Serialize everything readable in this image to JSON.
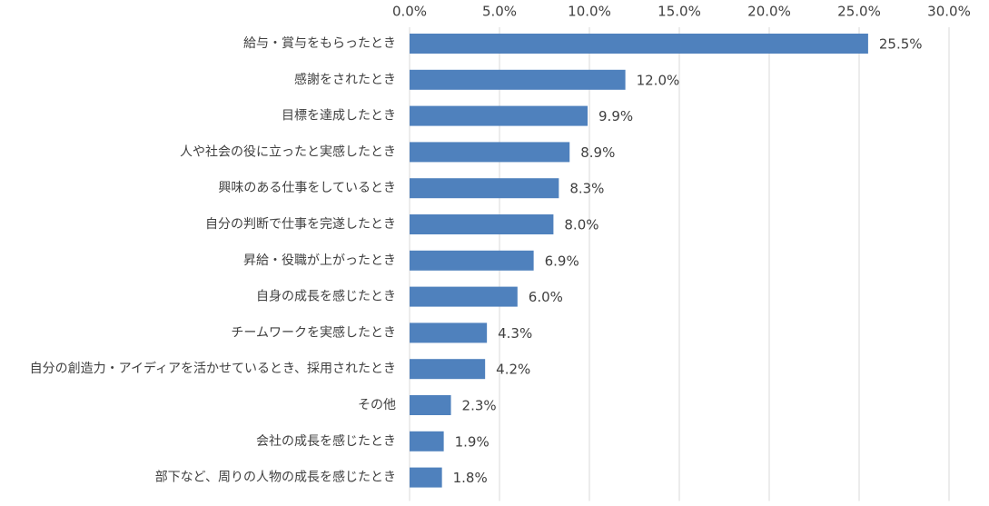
{
  "chart_data": {
    "type": "bar",
    "orientation": "horizontal",
    "categories": [
      "給与・賞与をもらったとき",
      "感謝をされたとき",
      "目標を達成したとき",
      "人や社会の役に立ったと実感したとき",
      "興味のある仕事をしているとき",
      "自分の判断で仕事を完遂したとき",
      "昇給・役職が上がったとき",
      "自身の成長を感じたとき",
      "チームワークを実感したとき",
      "自分の創造力・アイディアを活かせているとき、採用されたとき",
      "その他",
      "会社の成長を感じたとき",
      "部下など、周りの人物の成長を感じたとき"
    ],
    "values": [
      25.5,
      12.0,
      9.9,
      8.9,
      8.3,
      8.0,
      6.9,
      6.0,
      4.3,
      4.2,
      2.3,
      1.9,
      1.8
    ],
    "value_labels": [
      "25.5%",
      "12.0%",
      "9.9%",
      "8.9%",
      "8.3%",
      "8.0%",
      "6.9%",
      "6.0%",
      "4.3%",
      "4.2%",
      "2.3%",
      "1.9%",
      "1.8%"
    ],
    "xlim": [
      0,
      30
    ],
    "x_ticks": [
      0,
      5,
      10,
      15,
      20,
      25,
      30
    ],
    "x_tick_labels": [
      "0.0%",
      "5.0%",
      "10.0%",
      "15.0%",
      "20.0%",
      "25.0%",
      "30.0%"
    ],
    "x_axis_position": "top",
    "grid": true,
    "legend": false,
    "title": "",
    "xlabel": "",
    "ylabel": "",
    "colors": {
      "bar": "#4F81BD",
      "grid": "#D9D9D9",
      "text": "#404040"
    }
  }
}
